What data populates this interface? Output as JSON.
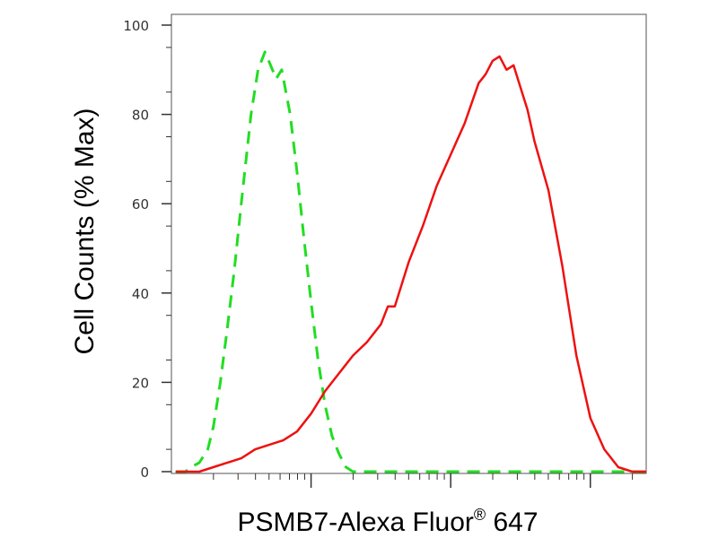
{
  "chart_data": {
    "type": "line",
    "ylabel": "Cell Counts (% Max)",
    "xlabel": "PSMB7-Alexa Fluor",
    "xlabel_superscript": "®",
    "xlabel_suffix": " 647",
    "x_scale": "log",
    "x_tick_labels_shown": false,
    "ylim": [
      0,
      100
    ],
    "y_ticks": [
      "0",
      "20",
      "40",
      "60",
      "80",
      "100"
    ],
    "grid": false,
    "series": [
      {
        "style": "dashed",
        "color": "#22dd22",
        "x": [
          0.03,
          0.1,
          0.14,
          0.2,
          0.26,
          0.3,
          0.35,
          0.4,
          0.45,
          0.5,
          0.57,
          0.62,
          0.67,
          0.71,
          0.75,
          0.79,
          0.85,
          0.9,
          0.95,
          1.0,
          1.05,
          1.1,
          1.15,
          1.2,
          1.25,
          1.3,
          1.35,
          1.4,
          1.5,
          1.6,
          1.7,
          2.0,
          2.5,
          3.0,
          3.4
        ],
        "y": [
          0,
          0,
          1,
          2,
          5,
          10,
          20,
          32,
          45,
          60,
          80,
          90,
          94,
          91,
          88,
          90,
          80,
          67,
          52,
          38,
          25,
          15,
          8,
          4,
          1,
          0,
          0,
          0,
          0,
          0,
          0,
          0,
          0,
          0,
          0
        ]
      },
      {
        "style": "solid",
        "color": "#ee1111",
        "x": [
          0.03,
          0.2,
          0.3,
          0.5,
          0.6,
          0.7,
          0.8,
          0.9,
          1.0,
          1.1,
          1.2,
          1.3,
          1.4,
          1.5,
          1.55,
          1.6,
          1.7,
          1.8,
          1.9,
          2.0,
          2.1,
          2.2,
          2.25,
          2.3,
          2.35,
          2.4,
          2.45,
          2.5,
          2.55,
          2.6,
          2.7,
          2.8,
          2.9,
          3.0,
          3.1,
          3.2,
          3.3,
          3.4
        ],
        "y": [
          0,
          0,
          1,
          3,
          5,
          6,
          7,
          9,
          13,
          18,
          22,
          26,
          29,
          33,
          37,
          37,
          47,
          55,
          64,
          71,
          78,
          87,
          89,
          92,
          93,
          90,
          91,
          86,
          81,
          74,
          63,
          46,
          26,
          12,
          5,
          1,
          0,
          0
        ]
      }
    ]
  }
}
